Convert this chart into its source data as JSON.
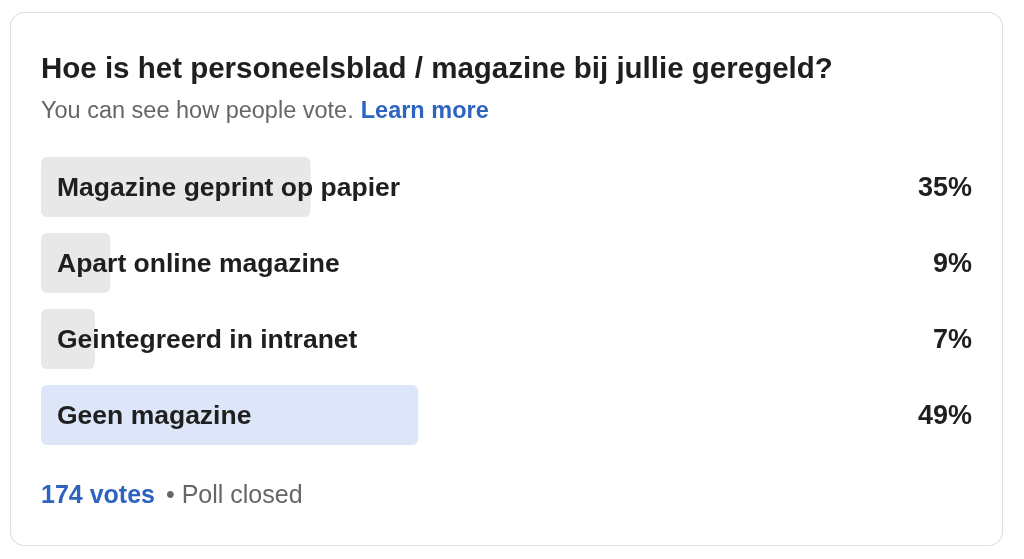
{
  "chart_data": {
    "type": "bar",
    "orientation": "horizontal",
    "title": "Hoe is het personeelsblad / magazine bij jullie geregeld?",
    "subtitle": "You can see how people vote.",
    "annotations": [
      "Learn more",
      "174 votes",
      "• Poll closed"
    ],
    "categories": [
      "Magazine geprint op papier",
      "Apart online magazine",
      "Geintegreerd in intranet",
      "Geen magazine"
    ],
    "values": [
      35,
      9,
      7,
      49
    ],
    "value_labels": [
      "35%",
      "9%",
      "7%",
      "49%"
    ],
    "colors": [
      "#e8e8e8",
      "#e8e8e8",
      "#e8e8e8",
      "#dce6f8"
    ]
  }
}
